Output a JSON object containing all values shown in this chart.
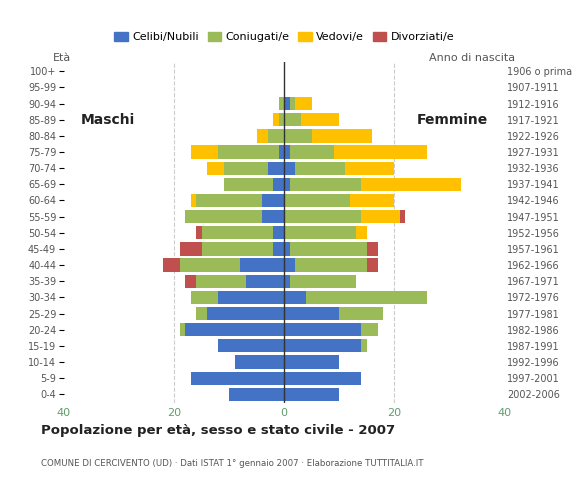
{
  "age_groups": [
    "0-4",
    "5-9",
    "10-14",
    "15-19",
    "20-24",
    "25-29",
    "30-34",
    "35-39",
    "40-44",
    "45-49",
    "50-54",
    "55-59",
    "60-64",
    "65-69",
    "70-74",
    "75-79",
    "80-84",
    "85-89",
    "90-94",
    "95-99",
    "100+"
  ],
  "birth_years": [
    "2002-2006",
    "1997-2001",
    "1992-1996",
    "1987-1991",
    "1982-1986",
    "1977-1981",
    "1972-1976",
    "1967-1971",
    "1962-1966",
    "1957-1961",
    "1952-1956",
    "1947-1951",
    "1942-1946",
    "1937-1941",
    "1932-1936",
    "1927-1931",
    "1922-1926",
    "1917-1921",
    "1912-1916",
    "1907-1911",
    "1906 o prima"
  ],
  "males": {
    "celibe": [
      10,
      17,
      9,
      12,
      18,
      14,
      12,
      7,
      8,
      2,
      2,
      4,
      4,
      2,
      3,
      1,
      0,
      0,
      0,
      0,
      0
    ],
    "coniugato": [
      0,
      0,
      0,
      0,
      1,
      2,
      5,
      9,
      11,
      13,
      13,
      14,
      12,
      9,
      8,
      11,
      3,
      1,
      1,
      0,
      0
    ],
    "vedovo": [
      0,
      0,
      0,
      0,
      0,
      0,
      0,
      0,
      0,
      0,
      0,
      0,
      1,
      0,
      3,
      5,
      2,
      1,
      0,
      0,
      0
    ],
    "divorziato": [
      0,
      0,
      0,
      0,
      0,
      0,
      0,
      2,
      3,
      4,
      1,
      0,
      0,
      0,
      0,
      0,
      0,
      0,
      0,
      0,
      0
    ]
  },
  "females": {
    "nubile": [
      10,
      14,
      10,
      14,
      14,
      10,
      4,
      1,
      2,
      1,
      0,
      0,
      0,
      1,
      2,
      1,
      0,
      0,
      1,
      0,
      0
    ],
    "coniugata": [
      0,
      0,
      0,
      1,
      3,
      8,
      22,
      12,
      13,
      14,
      13,
      14,
      12,
      13,
      9,
      8,
      5,
      3,
      1,
      0,
      0
    ],
    "vedova": [
      0,
      0,
      0,
      0,
      0,
      0,
      0,
      0,
      0,
      0,
      2,
      7,
      8,
      18,
      9,
      17,
      11,
      7,
      3,
      0,
      0
    ],
    "divorziata": [
      0,
      0,
      0,
      0,
      0,
      0,
      0,
      0,
      2,
      2,
      0,
      1,
      0,
      0,
      0,
      0,
      0,
      0,
      0,
      0,
      0
    ]
  },
  "colors": {
    "celibe": "#4472C4",
    "coniugato": "#9BBB59",
    "vedovo": "#FFC000",
    "divorziato": "#C0504D"
  },
  "xlim": 40,
  "title": "Popolazione per età, sesso e stato civile - 2007",
  "subtitle": "COMUNE DI CERCIVENTO (UD) · Dati ISTAT 1° gennaio 2007 · Elaborazione TUTTITALIA.IT",
  "legend_labels": [
    "Celibi/Nubili",
    "Coniugati/e",
    "Vedovi/e",
    "Divorziati/e"
  ],
  "label_maschi": "Maschi",
  "label_femmine": "Femmine",
  "label_eta": "Età",
  "label_anno": "Anno di nascita",
  "background_color": "#ffffff",
  "grid_color": "#cccccc",
  "tick_color": "#5f9e6e"
}
